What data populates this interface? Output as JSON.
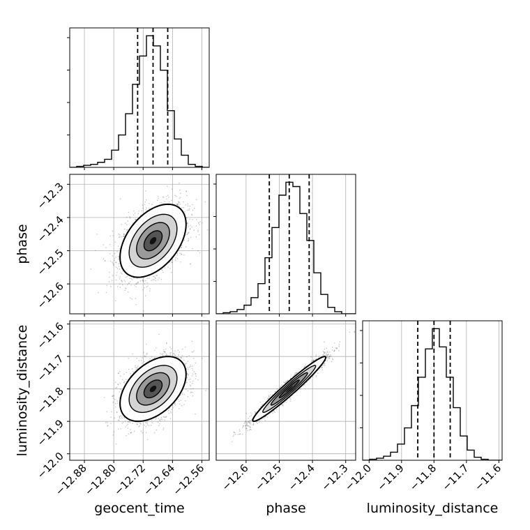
{
  "chart_data": {
    "type": "corner",
    "parameters": [
      "geocent_time",
      "phase",
      "luminosity_distance"
    ],
    "axis_labels": {
      "geocent_time": "geocent_time",
      "phase": "phase",
      "luminosity_distance": "luminosity_distance"
    },
    "ranges": {
      "geocent_time": [
        -12.92,
        -12.54
      ],
      "phase": [
        -12.69,
        -12.27
      ],
      "luminosity_distance": [
        -12.02,
        -11.59
      ]
    },
    "ticks": {
      "geocent_time": {
        "values": [
          -12.88,
          -12.8,
          -12.72,
          -12.64,
          -12.56
        ],
        "labels": [
          "−12.88",
          "−12.80",
          "−12.72",
          "−12.64",
          "−12.56"
        ]
      },
      "phase": {
        "values": [
          -12.6,
          -12.5,
          -12.4,
          -12.3
        ],
        "labels": [
          "−12.6",
          "−12.5",
          "−12.4",
          "−12.3"
        ]
      },
      "luminosity_distance": {
        "values": [
          -12.0,
          -11.9,
          -11.8,
          -11.7,
          -11.6
        ],
        "labels": [
          "−12.0",
          "−11.9",
          "−11.8",
          "−11.7",
          "−11.6"
        ]
      }
    },
    "quantiles": {
      "geocent_time": [
        -12.735,
        -12.693,
        -12.653
      ],
      "phase": [
        -12.53,
        -12.47,
        -12.41
      ],
      "luminosity_distance": [
        -11.85,
        -11.8,
        -11.75
      ]
    },
    "histograms": {
      "geocent_time": {
        "edges_range": [
          -12.92,
          -12.54
        ],
        "counts": [
          0,
          1,
          2,
          3,
          5,
          8,
          17,
          32,
          53,
          82,
          110,
          130,
          120,
          96,
          56,
          28,
          12,
          3,
          1,
          0
        ]
      },
      "phase": {
        "edges_range": [
          -12.69,
          -12.27
        ],
        "counts": [
          0,
          1,
          2,
          4,
          8,
          15,
          28,
          52,
          80,
          110,
          122,
          118,
          93,
          68,
          38,
          18,
          6,
          2,
          0,
          0
        ]
      },
      "luminosity_distance": {
        "edges_range": [
          -12.02,
          -11.59
        ],
        "counts": [
          0,
          1,
          2,
          4,
          8,
          16,
          32,
          54,
          82,
          110,
          130,
          112,
          82,
          52,
          24,
          10,
          3,
          1,
          0,
          0
        ]
      }
    },
    "pairs": [
      {
        "x": "geocent_time",
        "y": "phase",
        "mean": [
          -12.693,
          -12.47
        ],
        "std": [
          0.045,
          0.055
        ],
        "corr": 0.45
      },
      {
        "x": "geocent_time",
        "y": "luminosity_distance",
        "mean": [
          -12.693,
          -11.8
        ],
        "std": [
          0.045,
          0.05
        ],
        "corr": 0.45
      },
      {
        "x": "phase",
        "y": "luminosity_distance",
        "mean": [
          -12.47,
          -11.8
        ],
        "std": [
          0.055,
          0.05
        ],
        "corr": 0.97
      }
    ],
    "colors": {
      "line": "#000000",
      "grid": "#b0b0b0",
      "points": "#555555"
    },
    "grid": true
  }
}
